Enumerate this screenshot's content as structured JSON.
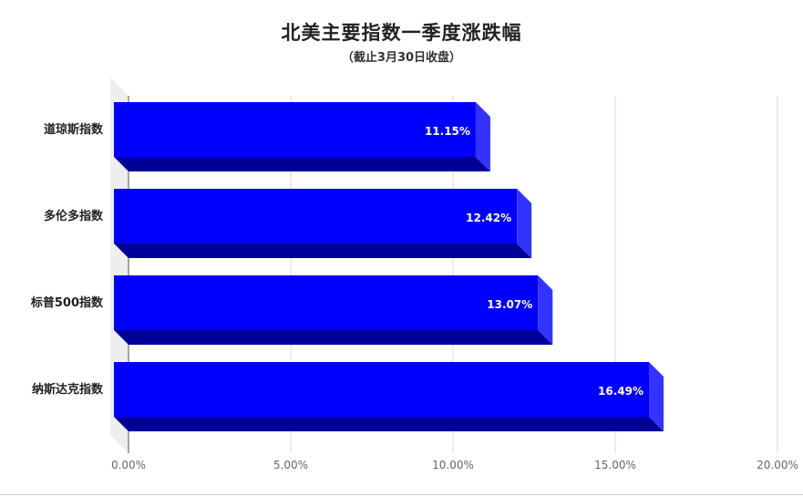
{
  "chart_data": {
    "type": "bar",
    "orientation": "horizontal",
    "title": "北美主要指数一季度涨跌幅",
    "subtitle": "（截止3月30日收盘）",
    "categories": [
      "道琼斯指数",
      "多伦多指数",
      "标普500指数",
      "纳斯达克指数"
    ],
    "values": [
      11.15,
      12.42,
      13.07,
      16.49
    ],
    "value_labels": [
      "11.15%",
      "12.42%",
      "13.07%",
      "16.49%"
    ],
    "xlim": [
      0,
      20
    ],
    "x_ticks": [
      0,
      5,
      10,
      15,
      20
    ],
    "x_tick_labels": [
      "0.00%",
      "5.00%",
      "10.00%",
      "15.00%",
      "20.00%"
    ],
    "grid": true,
    "legend": "none",
    "colors": {
      "bar_front": "#0000ff",
      "bar_side": "#3333ff",
      "bar_bottom": "#000099",
      "grid": "#d9d9d9",
      "wall": "#eeeeee"
    }
  }
}
